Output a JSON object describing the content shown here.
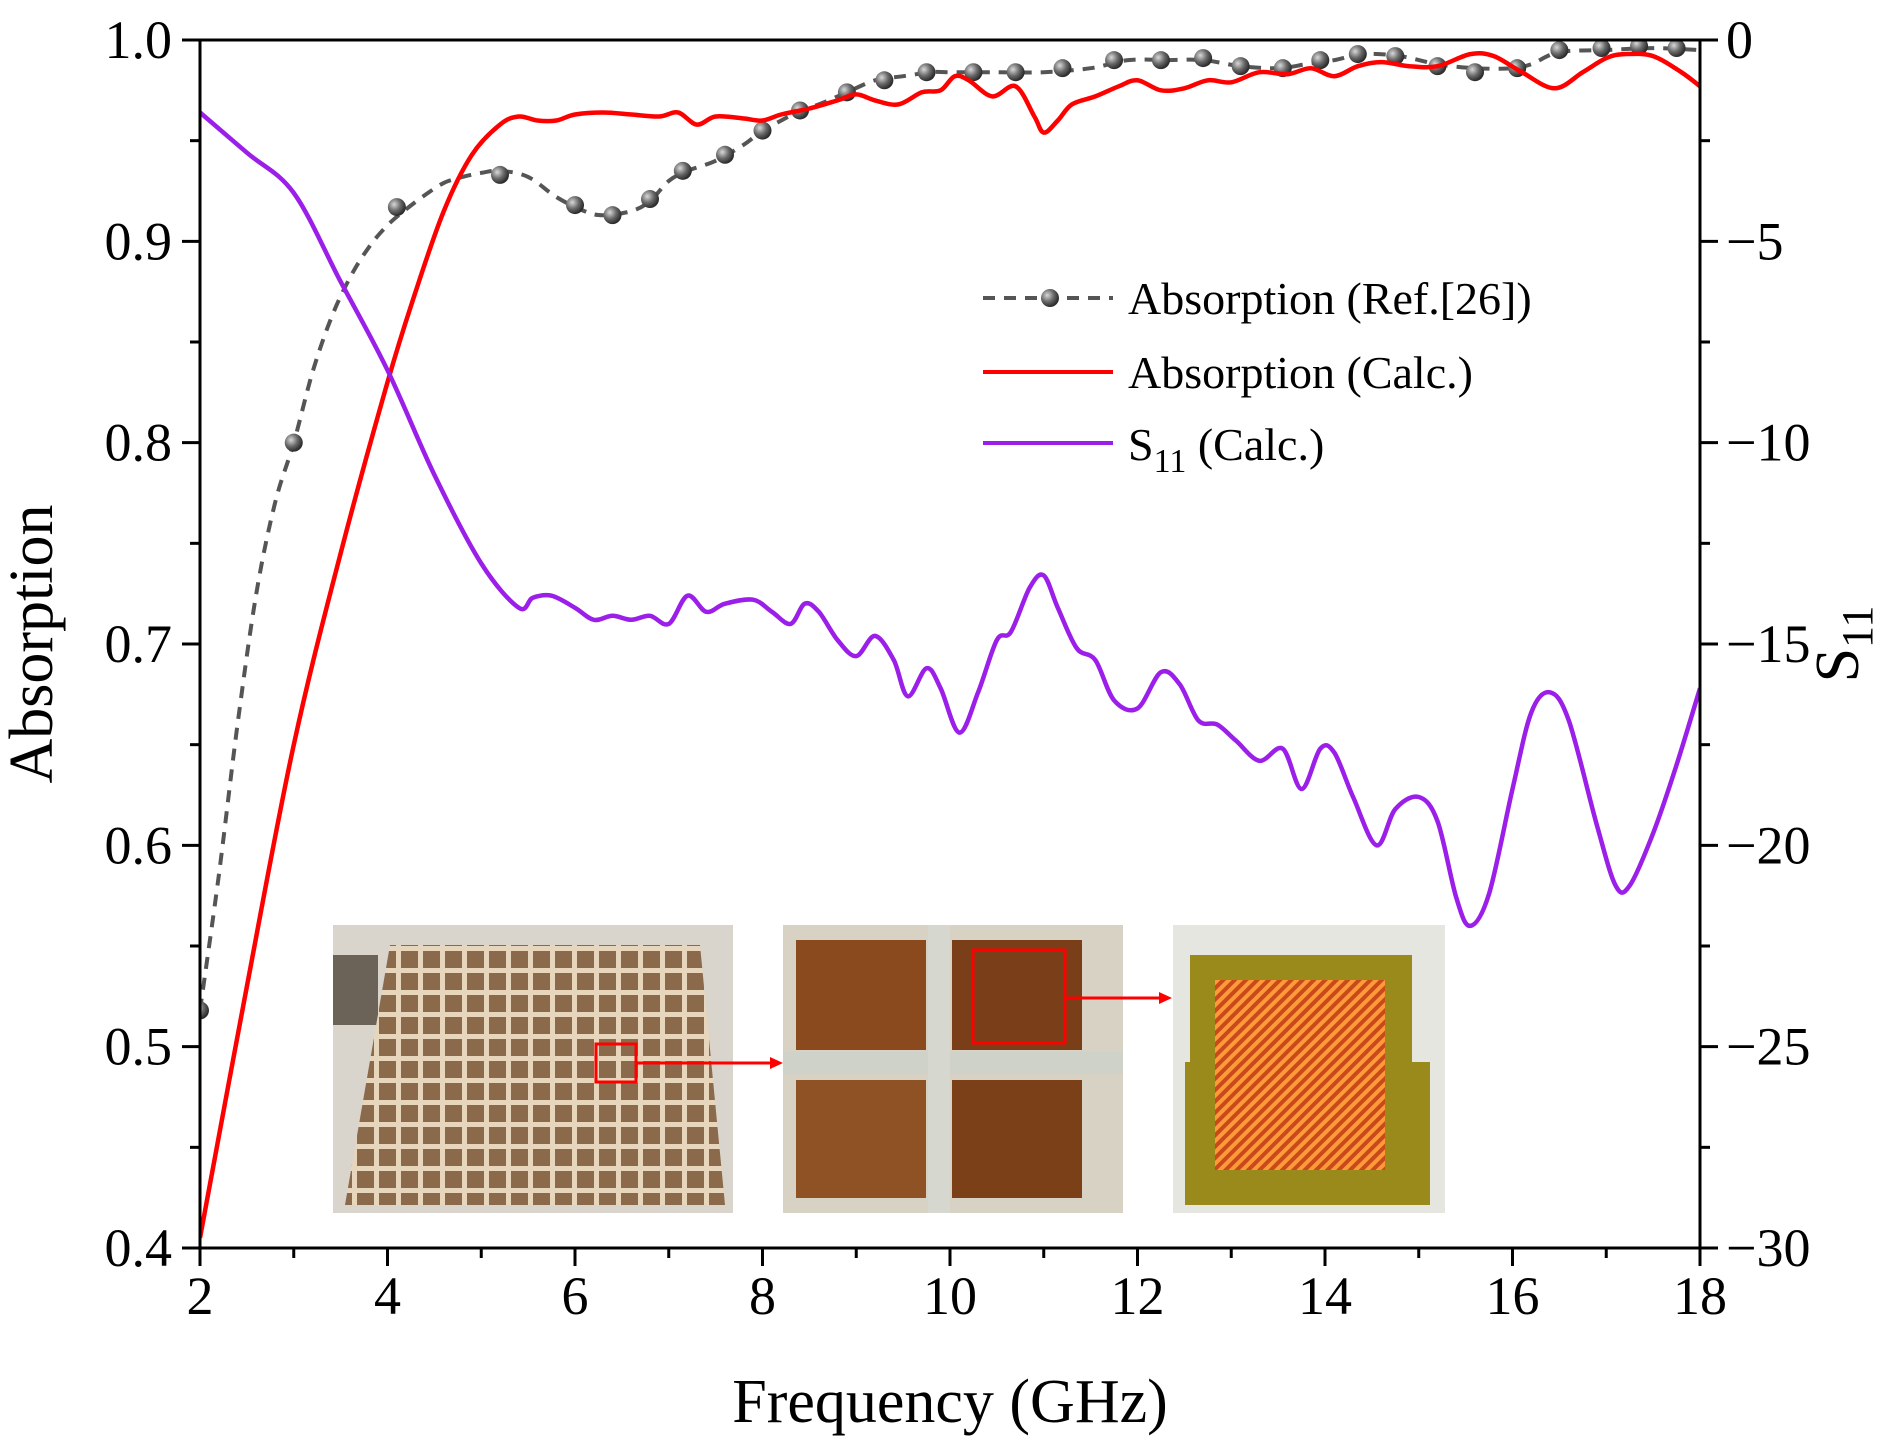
{
  "chart_data": {
    "type": "line",
    "title": "",
    "xlabel": "Frequency (GHz)",
    "ylabel": "Absorption",
    "y2label_main": "S",
    "y2label_sub": "11",
    "xlim": [
      2,
      18
    ],
    "ylim": [
      0.4,
      1.0
    ],
    "y2lim": [
      -30,
      0
    ],
    "x_ticks": [
      2,
      4,
      6,
      8,
      10,
      12,
      14,
      16,
      18
    ],
    "y_ticks": [
      "0.4",
      "0.5",
      "0.6",
      "0.7",
      "0.8",
      "0.9",
      "1.0"
    ],
    "y2_ticks": [
      "−30",
      "−25",
      "−20",
      "−15",
      "−10",
      "−5",
      "0"
    ],
    "legend_position": "top-right",
    "series": [
      {
        "name": "Absorption (Ref.[26])",
        "axis": "left",
        "style": "dashed-dots",
        "color": "#555555",
        "marker_color": "#4a4a4a",
        "points": [
          [
            2.0,
            0.518
          ],
          [
            2.2,
            0.585
          ],
          [
            2.4,
            0.66
          ],
          [
            2.6,
            0.725
          ],
          [
            2.8,
            0.77
          ],
          [
            3.0,
            0.8
          ],
          [
            3.2,
            0.835
          ],
          [
            3.4,
            0.862
          ],
          [
            3.6,
            0.882
          ],
          [
            3.8,
            0.897
          ],
          [
            4.0,
            0.908
          ],
          [
            4.2,
            0.916
          ],
          [
            4.4,
            0.923
          ],
          [
            4.6,
            0.929
          ],
          [
            4.8,
            0.932
          ],
          [
            5.0,
            0.934
          ],
          [
            5.2,
            0.935
          ],
          [
            5.5,
            0.932
          ],
          [
            5.8,
            0.922
          ],
          [
            6.1,
            0.915
          ],
          [
            6.3,
            0.913
          ],
          [
            6.6,
            0.915
          ],
          [
            6.8,
            0.92
          ],
          [
            7.0,
            0.93
          ],
          [
            7.2,
            0.935
          ],
          [
            7.5,
            0.94
          ],
          [
            7.8,
            0.948
          ],
          [
            8.0,
            0.955
          ],
          [
            8.2,
            0.96
          ],
          [
            8.4,
            0.965
          ],
          [
            8.6,
            0.968
          ],
          [
            8.9,
            0.974
          ],
          [
            9.2,
            0.98
          ],
          [
            9.5,
            0.982
          ],
          [
            9.8,
            0.984
          ],
          [
            10.0,
            0.984
          ],
          [
            10.5,
            0.984
          ],
          [
            11.0,
            0.984
          ],
          [
            11.5,
            0.986
          ],
          [
            11.9,
            0.99
          ],
          [
            12.3,
            0.99
          ],
          [
            12.7,
            0.99
          ],
          [
            13.1,
            0.987
          ],
          [
            13.5,
            0.986
          ],
          [
            13.8,
            0.988
          ],
          [
            14.1,
            0.99
          ],
          [
            14.4,
            0.993
          ],
          [
            14.8,
            0.992
          ],
          [
            15.2,
            0.988
          ],
          [
            15.6,
            0.986
          ],
          [
            16.0,
            0.986
          ],
          [
            16.2,
            0.988
          ],
          [
            16.5,
            0.994
          ],
          [
            17.0,
            0.995
          ],
          [
            17.5,
            0.996
          ],
          [
            18.0,
            0.995
          ]
        ],
        "markers_x": [
          2.0,
          3.0,
          4.1,
          5.2,
          6.0,
          6.4,
          6.8,
          7.15,
          7.6,
          8.0,
          8.4,
          8.9,
          9.3,
          9.75,
          10.25,
          10.7,
          11.2,
          11.75,
          12.25,
          12.7,
          13.1,
          13.55,
          13.95,
          14.35,
          14.75,
          15.2,
          15.6,
          16.05,
          16.5,
          16.95,
          17.35,
          17.75
        ],
        "markers_y": [
          0.518,
          0.8,
          0.917,
          0.933,
          0.918,
          0.913,
          0.921,
          0.935,
          0.943,
          0.955,
          0.965,
          0.974,
          0.98,
          0.984,
          0.984,
          0.984,
          0.986,
          0.99,
          0.99,
          0.991,
          0.987,
          0.986,
          0.99,
          0.993,
          0.992,
          0.987,
          0.984,
          0.986,
          0.995,
          0.996,
          0.997,
          0.996
        ]
      },
      {
        "name": "Absorption (Calc.)",
        "axis": "left",
        "style": "solid",
        "color": "#ff0000",
        "points": [
          [
            2.0,
            0.405
          ],
          [
            2.5,
            0.53
          ],
          [
            3.0,
            0.65
          ],
          [
            3.5,
            0.745
          ],
          [
            4.0,
            0.83
          ],
          [
            4.3,
            0.875
          ],
          [
            4.6,
            0.915
          ],
          [
            4.9,
            0.943
          ],
          [
            5.2,
            0.958
          ],
          [
            5.4,
            0.962
          ],
          [
            5.6,
            0.96
          ],
          [
            5.8,
            0.96
          ],
          [
            6.0,
            0.963
          ],
          [
            6.3,
            0.964
          ],
          [
            6.6,
            0.963
          ],
          [
            6.9,
            0.962
          ],
          [
            7.1,
            0.964
          ],
          [
            7.3,
            0.958
          ],
          [
            7.5,
            0.962
          ],
          [
            7.8,
            0.961
          ],
          [
            8.0,
            0.96
          ],
          [
            8.2,
            0.963
          ],
          [
            8.5,
            0.966
          ],
          [
            8.8,
            0.97
          ],
          [
            9.0,
            0.973
          ],
          [
            9.2,
            0.97
          ],
          [
            9.45,
            0.968
          ],
          [
            9.7,
            0.974
          ],
          [
            9.9,
            0.975
          ],
          [
            10.05,
            0.982
          ],
          [
            10.2,
            0.98
          ],
          [
            10.45,
            0.972
          ],
          [
            10.7,
            0.977
          ],
          [
            10.9,
            0.962
          ],
          [
            11.0,
            0.954
          ],
          [
            11.15,
            0.96
          ],
          [
            11.3,
            0.968
          ],
          [
            11.55,
            0.972
          ],
          [
            11.8,
            0.977
          ],
          [
            12.0,
            0.98
          ],
          [
            12.25,
            0.975
          ],
          [
            12.5,
            0.976
          ],
          [
            12.75,
            0.98
          ],
          [
            13.0,
            0.979
          ],
          [
            13.3,
            0.984
          ],
          [
            13.6,
            0.983
          ],
          [
            13.85,
            0.986
          ],
          [
            14.1,
            0.982
          ],
          [
            14.35,
            0.987
          ],
          [
            14.6,
            0.989
          ],
          [
            14.9,
            0.987
          ],
          [
            15.2,
            0.987
          ],
          [
            15.55,
            0.993
          ],
          [
            15.8,
            0.992
          ],
          [
            16.1,
            0.984
          ],
          [
            16.45,
            0.976
          ],
          [
            16.75,
            0.984
          ],
          [
            17.0,
            0.991
          ],
          [
            17.2,
            0.993
          ],
          [
            17.5,
            0.992
          ],
          [
            17.8,
            0.984
          ],
          [
            18.0,
            0.977
          ]
        ]
      },
      {
        "name": "S11 (Calc.)",
        "legend_main": "S",
        "legend_sub": "11",
        "legend_rest": " (Calc.)",
        "axis": "right",
        "style": "solid",
        "color": "#9b1fe8",
        "points": [
          [
            2.0,
            -1.8
          ],
          [
            2.5,
            -2.8
          ],
          [
            3.0,
            -3.8
          ],
          [
            3.5,
            -6.0
          ],
          [
            4.0,
            -8.2
          ],
          [
            4.5,
            -10.8
          ],
          [
            5.0,
            -13.0
          ],
          [
            5.4,
            -14.1
          ],
          [
            5.55,
            -13.85
          ],
          [
            5.75,
            -13.8
          ],
          [
            6.0,
            -14.1
          ],
          [
            6.2,
            -14.4
          ],
          [
            6.4,
            -14.3
          ],
          [
            6.6,
            -14.4
          ],
          [
            6.8,
            -14.3
          ],
          [
            7.0,
            -14.5
          ],
          [
            7.2,
            -13.8
          ],
          [
            7.4,
            -14.2
          ],
          [
            7.6,
            -14.0
          ],
          [
            7.9,
            -13.9
          ],
          [
            8.1,
            -14.2
          ],
          [
            8.3,
            -14.5
          ],
          [
            8.45,
            -14.0
          ],
          [
            8.6,
            -14.2
          ],
          [
            8.8,
            -14.9
          ],
          [
            9.0,
            -15.3
          ],
          [
            9.2,
            -14.8
          ],
          [
            9.4,
            -15.4
          ],
          [
            9.55,
            -16.3
          ],
          [
            9.75,
            -15.6
          ],
          [
            9.9,
            -16.1
          ],
          [
            10.1,
            -17.2
          ],
          [
            10.3,
            -16.2
          ],
          [
            10.5,
            -14.9
          ],
          [
            10.65,
            -14.7
          ],
          [
            10.85,
            -13.6
          ],
          [
            11.0,
            -13.3
          ],
          [
            11.15,
            -14.1
          ],
          [
            11.35,
            -15.1
          ],
          [
            11.55,
            -15.4
          ],
          [
            11.75,
            -16.4
          ],
          [
            12.0,
            -16.6
          ],
          [
            12.25,
            -15.7
          ],
          [
            12.45,
            -16.0
          ],
          [
            12.65,
            -16.9
          ],
          [
            12.85,
            -17.0
          ],
          [
            13.05,
            -17.4
          ],
          [
            13.3,
            -17.9
          ],
          [
            13.55,
            -17.6
          ],
          [
            13.75,
            -18.6
          ],
          [
            13.95,
            -17.6
          ],
          [
            14.1,
            -17.7
          ],
          [
            14.3,
            -18.8
          ],
          [
            14.55,
            -20.0
          ],
          [
            14.75,
            -19.1
          ],
          [
            15.0,
            -18.8
          ],
          [
            15.2,
            -19.4
          ],
          [
            15.4,
            -21.3
          ],
          [
            15.55,
            -22.0
          ],
          [
            15.75,
            -21.2
          ],
          [
            16.0,
            -18.6
          ],
          [
            16.2,
            -16.7
          ],
          [
            16.4,
            -16.2
          ],
          [
            16.6,
            -16.9
          ],
          [
            16.9,
            -19.5
          ],
          [
            17.1,
            -21.0
          ],
          [
            17.25,
            -21.0
          ],
          [
            17.5,
            -19.7
          ],
          [
            17.75,
            -18.0
          ],
          [
            18.0,
            -16.1
          ]
        ]
      }
    ],
    "inset_photos": [
      "grid-overview-photo",
      "grid-cell-closeup-photo",
      "resistive-pattern-photo"
    ]
  }
}
